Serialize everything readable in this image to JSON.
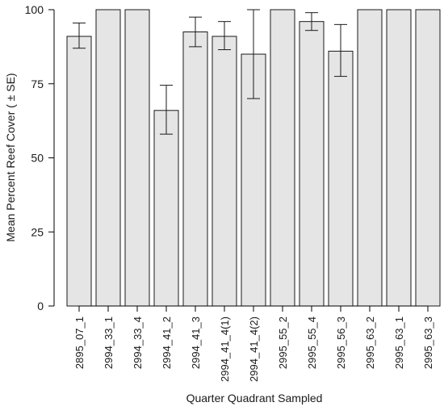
{
  "chart_data": {
    "type": "bar",
    "xlabel": "Quarter Quadrant Sampled",
    "ylabel": "Mean Percent Reef Cover ( ± SE)",
    "ylim": [
      0,
      100
    ],
    "yticks": [
      0,
      25,
      50,
      75,
      100
    ],
    "grid": false,
    "categories": [
      "2895_07_1",
      "2994_33_1",
      "2994_33_4",
      "2994_41_2",
      "2994_41_3",
      "2994_41_4(1)",
      "2994_41_4(2)",
      "2995_55_2",
      "2995_55_4",
      "2995_56_3",
      "2995_63_2",
      "2995_63_1",
      "2995_63_3"
    ],
    "values": [
      91,
      100,
      100,
      66,
      92.5,
      91,
      85,
      100,
      96,
      86,
      100,
      100,
      100
    ],
    "error_low": [
      87,
      null,
      null,
      58,
      87.5,
      86.5,
      70,
      null,
      93,
      77.5,
      null,
      null,
      null
    ],
    "error_high": [
      95.5,
      null,
      null,
      74.5,
      97.5,
      96,
      100,
      null,
      99,
      95,
      null,
      null,
      null
    ],
    "colors": {
      "bar_fill": "#e5e5e5",
      "bar_stroke": "#1a1a1a"
    }
  }
}
